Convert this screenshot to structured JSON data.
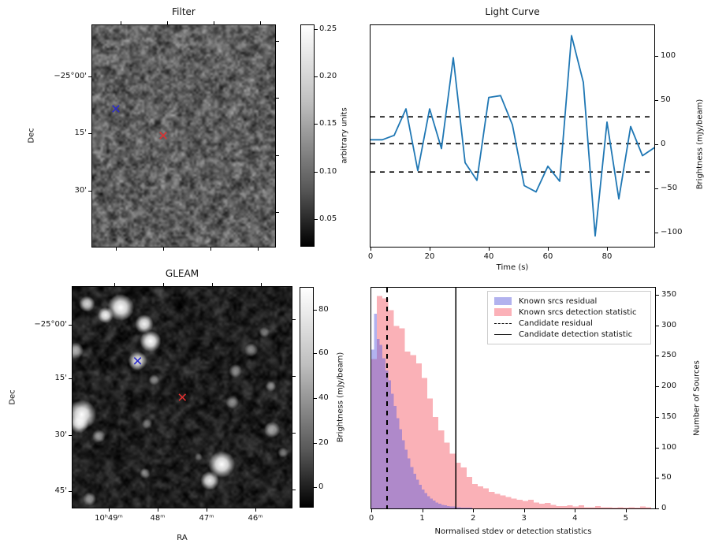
{
  "figure": {
    "bg": "#ffffff"
  },
  "filter_panel": {
    "title": "Filter",
    "ylabel": "Dec",
    "dec_tick_labels": [
      "−25°00'",
      "15'",
      "30'"
    ],
    "colorbar_label": "arbitrary units",
    "colorbar_tick_labels": [
      "0.25",
      "0.20",
      "0.15",
      "0.10",
      "0.05"
    ],
    "markers": [
      {
        "name": "known-source",
        "color": "#2a2acc",
        "fx": 0.129,
        "fy": 0.377
      },
      {
        "name": "candidate",
        "color": "#e03030",
        "fx": 0.388,
        "fy": 0.498
      }
    ]
  },
  "lightcurve_panel": {
    "title": "Light Curve",
    "xlabel": "Time (s)",
    "ylabel": "Brightness (mJy/beam)",
    "x_tick_labels": [
      "0",
      "20",
      "40",
      "60",
      "80"
    ],
    "y_tick_labels": [
      "100",
      "50",
      "0",
      "−50",
      "−100"
    ],
    "line_color": "#1f77b4"
  },
  "gleam_panel": {
    "title": "GLEAM",
    "xlabel": "RA",
    "ylabel": "Dec",
    "dec_tick_labels": [
      "−25°00'",
      "15'",
      "30'",
      "45'"
    ],
    "ra_tick_labels": [
      "10ʰ49ᵐ",
      "48ᵐ",
      "47ᵐ",
      "46ᵐ"
    ],
    "colorbar_label": "Brightness (mJy/beam)",
    "colorbar_tick_labels": [
      "80",
      "60",
      "40",
      "20",
      "0"
    ],
    "markers": [
      {
        "name": "known-source",
        "color": "#2a2acc",
        "fx": 0.297,
        "fy": 0.335
      },
      {
        "name": "candidate",
        "color": "#e03030",
        "fx": 0.501,
        "fy": 0.5
      }
    ],
    "sources": [
      [
        0.22,
        0.093,
        10,
        1.0
      ],
      [
        0.151,
        0.128,
        6,
        0.95
      ],
      [
        0.066,
        0.077,
        6,
        0.8
      ],
      [
        0.327,
        0.168,
        7,
        0.95
      ],
      [
        0.356,
        0.246,
        8,
        1.0
      ],
      [
        0.297,
        0.335,
        7,
        0.9
      ],
      [
        0.014,
        0.288,
        6,
        0.7
      ],
      [
        0.042,
        0.578,
        11,
        1.0
      ],
      [
        0.03,
        0.62,
        7,
        0.9
      ],
      [
        0.681,
        0.804,
        10,
        1.0
      ],
      [
        0.626,
        0.878,
        7,
        0.9
      ],
      [
        0.911,
        0.647,
        6,
        0.6
      ],
      [
        0.815,
        0.285,
        5,
        0.5
      ],
      [
        0.743,
        0.38,
        5,
        0.5
      ],
      [
        0.12,
        0.676,
        5,
        0.55
      ],
      [
        0.372,
        0.421,
        4,
        0.45
      ],
      [
        0.729,
        0.522,
        5,
        0.5
      ],
      [
        0.078,
        0.961,
        5,
        0.55
      ],
      [
        0.33,
        0.845,
        4,
        0.5
      ],
      [
        0.905,
        0.45,
        4,
        0.5
      ],
      [
        0.96,
        0.75,
        4,
        0.45
      ],
      [
        0.34,
        0.62,
        4,
        0.45
      ],
      [
        0.875,
        0.205,
        4,
        0.4
      ],
      [
        0.575,
        0.77,
        3,
        0.35
      ]
    ]
  },
  "hist_panel": {
    "xlabel": "Normalised stdev or detection statistics",
    "ylabel": "Number of Sources",
    "x_tick_labels": [
      "0",
      "1",
      "2",
      "3",
      "4",
      "5"
    ],
    "y_tick_labels": [
      "0",
      "50",
      "100",
      "150",
      "200",
      "250",
      "300",
      "350"
    ],
    "fill_blue": "rgba(92,92,224,0.47)",
    "fill_pink": "rgba(246,100,112,0.5)",
    "legend": [
      {
        "label": "Known srcs residual",
        "type": "patch",
        "color": "#b2b2ee"
      },
      {
        "label": "Known srcs detection statistic",
        "type": "patch",
        "color": "#fbb1b8"
      },
      {
        "label": "Candidate residual",
        "type": "dashed-line"
      },
      {
        "label": "Candidate detection statistic",
        "type": "solid-line"
      }
    ]
  },
  "chart_data": [
    {
      "type": "image",
      "title": "Filter",
      "x_axis": "RA",
      "y_axis": "Dec",
      "dec_ticks": [
        "−25°00'",
        "15'",
        "30'"
      ],
      "colorbar_units": "arbitrary units",
      "colorbar_ticks": [
        0.25,
        0.2,
        0.15,
        0.1,
        0.05
      ],
      "colorbar_range": [
        0.02,
        0.26
      ],
      "markers": [
        "blue x: known source",
        "red x: candidate position"
      ]
    },
    {
      "type": "line",
      "title": "Light Curve",
      "xlabel": "Time (s)",
      "ylabel": "Brightness (mJy/beam)",
      "x": [
        0,
        4,
        8,
        12,
        16,
        20,
        24,
        28,
        32,
        36,
        40,
        44,
        48,
        52,
        56,
        60,
        64,
        68,
        72,
        76,
        80,
        84,
        88,
        92,
        96
      ],
      "y": [
        5,
        5,
        10,
        40,
        -30,
        40,
        -5,
        98,
        -21,
        -41,
        53,
        55,
        22,
        -47,
        -54,
        -25,
        -42,
        123,
        70,
        -104,
        25,
        -62,
        20,
        -13,
        -4
      ],
      "threshold_hlines": [
        31,
        0.5,
        -31.5
      ],
      "xlim": [
        0,
        96
      ],
      "ylim": [
        -116,
        135
      ],
      "x_ticks": [
        0,
        20,
        40,
        60,
        80
      ],
      "y_ticks": [
        100,
        50,
        0,
        -50,
        -100
      ]
    },
    {
      "type": "image",
      "title": "GLEAM",
      "x_axis": "RA",
      "y_axis": "Dec",
      "ra_ticks": [
        "10ʰ49ᵐ",
        "48ᵐ",
        "47ᵐ",
        "46ᵐ"
      ],
      "dec_ticks": [
        "−25°00'",
        "15'",
        "30'",
        "45'"
      ],
      "colorbar_units": "Brightness (mJy/beam)",
      "colorbar_ticks": [
        80,
        60,
        40,
        20,
        0
      ],
      "colorbar_range": [
        -9,
        89
      ],
      "markers": [
        "blue x: known source",
        "red x: candidate position"
      ]
    },
    {
      "type": "histogram",
      "xlabel": "Normalised stdev or detection statistics",
      "ylabel": "Number of Sources",
      "xlim": [
        0,
        5.58
      ],
      "ylim": [
        0,
        362
      ],
      "x_ticks": [
        0,
        1,
        2,
        3,
        4,
        5
      ],
      "y_ticks": [
        0,
        50,
        100,
        150,
        200,
        250,
        300,
        350
      ],
      "series": [
        {
          "name": "Known srcs residual",
          "bin_start": 0,
          "bin_width": 0.055,
          "counts": [
            260,
            319,
            278,
            268,
            246,
            226,
            210,
            188,
            168,
            148,
            130,
            112,
            96,
            82,
            68,
            57,
            47,
            39,
            31,
            25,
            20,
            16,
            13,
            10,
            8,
            6,
            5,
            4,
            3,
            3,
            2,
            2,
            1,
            1,
            1,
            1
          ]
        },
        {
          "name": "Known srcs detection statistic",
          "bin_start": 0,
          "bin_width": 0.11,
          "counts": [
            245,
            348,
            344,
            325,
            299,
            295,
            257,
            251,
            238,
            214,
            180,
            150,
            128,
            108,
            90,
            75,
            67,
            52,
            40,
            36,
            33,
            27,
            24,
            21,
            19,
            16,
            14,
            12,
            14,
            10,
            8,
            9,
            6,
            4,
            4,
            5,
            3,
            5,
            2,
            2,
            4,
            2,
            2,
            1,
            2,
            1,
            2,
            1,
            3,
            2
          ]
        }
      ],
      "vlines": [
        {
          "name": "Candidate residual",
          "x": 0.31,
          "style": "dashed"
        },
        {
          "name": "Candidate detection statistic",
          "x": 1.66,
          "style": "solid"
        }
      ]
    }
  ]
}
